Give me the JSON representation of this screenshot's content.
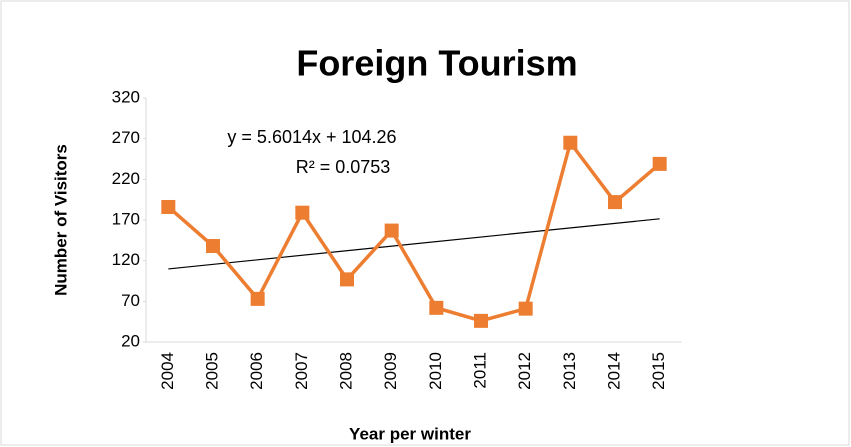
{
  "chart_data": {
    "type": "line",
    "title": "Foreign Tourism",
    "x_label": "Year per winter",
    "y_label": "Number of Visitors",
    "categories": [
      "2004",
      "2005",
      "2006",
      "2007",
      "2008",
      "2009",
      "2010",
      "2011",
      "2012",
      "2013",
      "2014",
      "2015"
    ],
    "series": [
      {
        "name": "Foreign Tourism",
        "color": "#ed7d31",
        "values": [
          186,
          138,
          73,
          179,
          97,
          157,
          62,
          46,
          61,
          265,
          192,
          239
        ]
      }
    ],
    "trendline": {
      "equation": "y = 5.6014x + 104.26",
      "r_squared": "R² = 0.0753",
      "color": "#000000"
    },
    "ylim": [
      20,
      320
    ],
    "yticks": [
      20,
      70,
      120,
      170,
      220,
      270,
      320
    ],
    "grid": false
  }
}
